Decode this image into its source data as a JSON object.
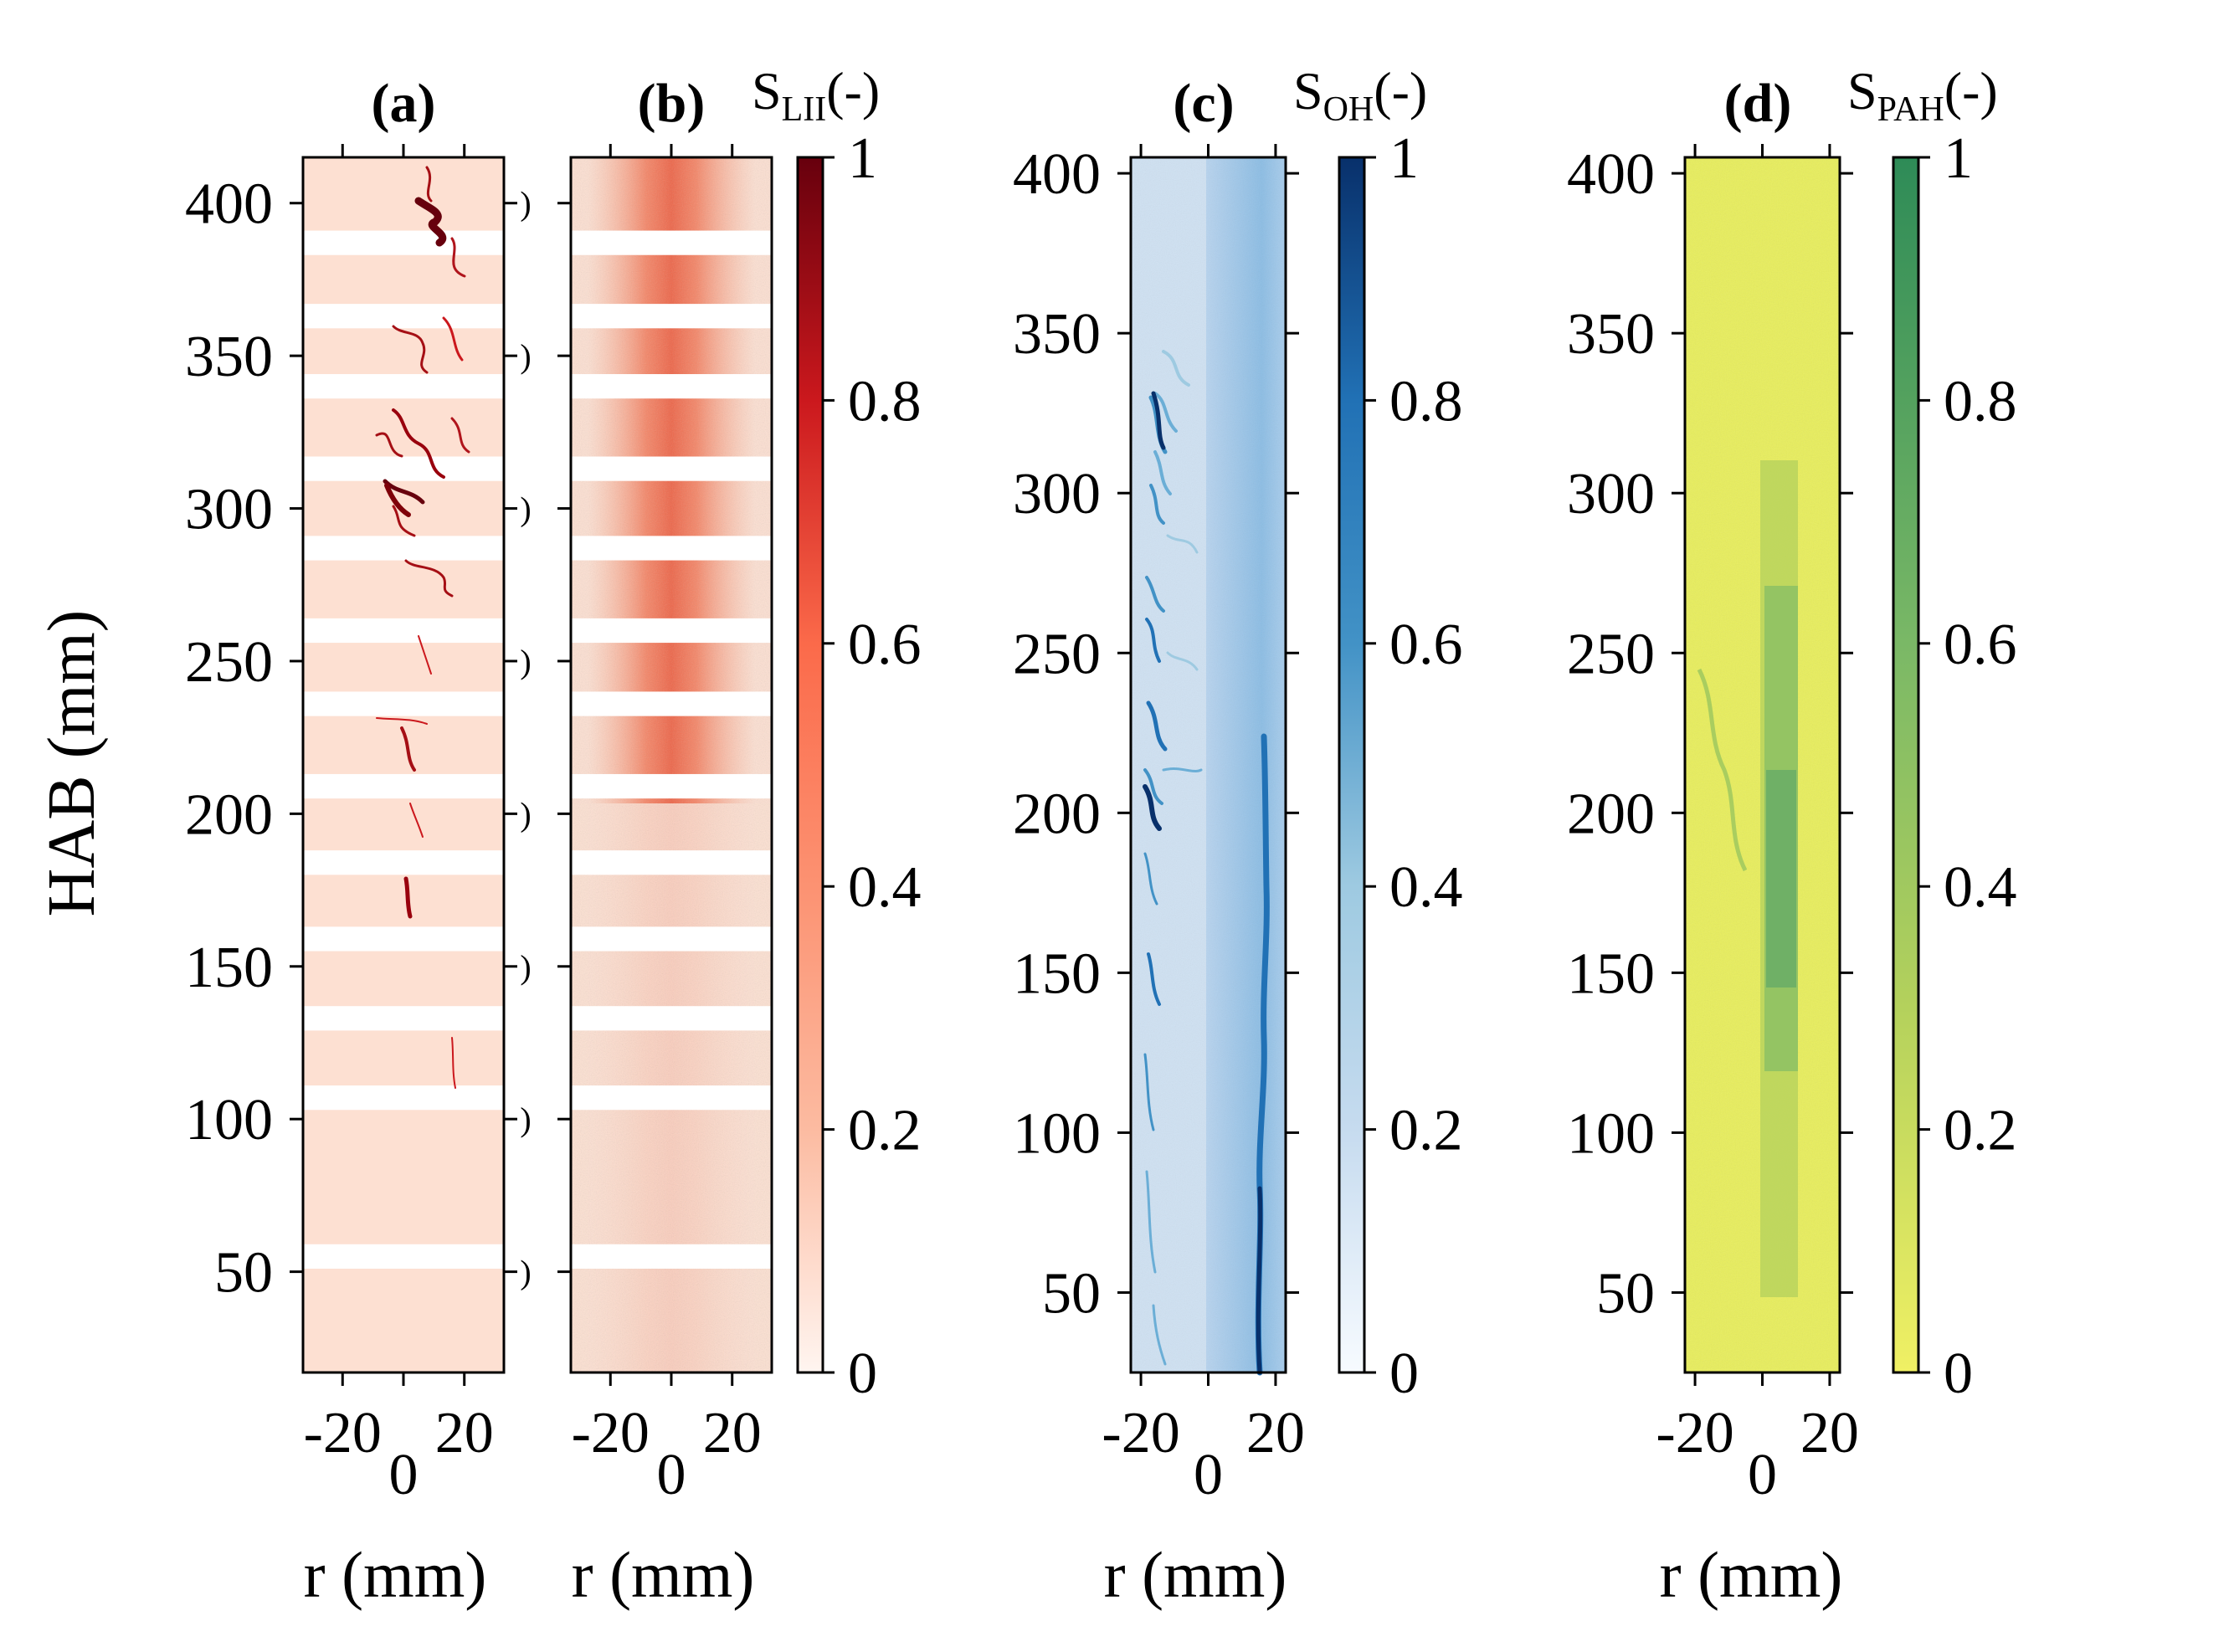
{
  "figure": {
    "ylabel": "HAB (mm)",
    "xlabel": "r (mm)"
  },
  "chart_data": [
    {
      "id": "a",
      "type": "heatmap",
      "title": "(a)",
      "xlabel": "r (mm)",
      "ylabel": "HAB (mm)",
      "xlim": [
        -33,
        33
      ],
      "ylim": [
        17,
        415
      ],
      "xticks": [
        -20,
        0,
        20
      ],
      "yticks": [
        50,
        100,
        150,
        200,
        250,
        300,
        350,
        400
      ],
      "quantity": "S_LII",
      "colormap": "Reds",
      "colorbar_range": [
        0,
        1
      ],
      "gap_bands_hab": [
        [
          51,
          59
        ],
        [
          103,
          111
        ],
        [
          129,
          137
        ],
        [
          155,
          163
        ],
        [
          180,
          188
        ],
        [
          205,
          213
        ],
        [
          232,
          240
        ],
        [
          256,
          264
        ],
        [
          283,
          291
        ],
        [
          309,
          317
        ],
        [
          336,
          344
        ],
        [
          359,
          367
        ],
        [
          383,
          391
        ]
      ]
    },
    {
      "id": "b",
      "type": "heatmap",
      "title": "(b)",
      "xlabel": "r (mm)",
      "xlim": [
        -33,
        33
      ],
      "ylim": [
        17,
        415
      ],
      "xticks": [
        -20,
        0,
        20
      ],
      "quantity": "S_LII",
      "colormap": "Reds",
      "colorbar_label": "S",
      "colorbar_label_sub": "LII",
      "colorbar_label_suffix": "(-)",
      "colorbar_range": [
        0,
        1
      ],
      "colorbar_ticks": [
        "0",
        "0.2",
        "0.4",
        "0.6",
        "0.8",
        "1"
      ],
      "gap_bands_hab": [
        [
          51,
          59
        ],
        [
          103,
          111
        ],
        [
          129,
          137
        ],
        [
          155,
          163
        ],
        [
          180,
          188
        ],
        [
          205,
          213
        ],
        [
          232,
          240
        ],
        [
          256,
          264
        ],
        [
          283,
          291
        ],
        [
          309,
          317
        ],
        [
          336,
          344
        ],
        [
          359,
          367
        ],
        [
          383,
          391
        ]
      ]
    },
    {
      "id": "c",
      "type": "heatmap",
      "title": "(c)",
      "xlabel": "r (mm)",
      "xlim": [
        -23,
        23
      ],
      "ylim": [
        25,
        405
      ],
      "xticks": [
        -20,
        0,
        20
      ],
      "yticks": [
        50,
        100,
        150,
        200,
        250,
        300,
        350,
        400
      ],
      "quantity": "S_OH",
      "colormap": "Blues",
      "colorbar_label": "S",
      "colorbar_label_sub": "OH",
      "colorbar_label_suffix": "(-)",
      "colorbar_range": [
        0,
        1
      ],
      "colorbar_ticks": [
        "0",
        "0.2",
        "0.4",
        "0.6",
        "0.8",
        "1"
      ]
    },
    {
      "id": "d",
      "type": "heatmap",
      "title": "(d)",
      "xlabel": "r (mm)",
      "xlim": [
        -23,
        23
      ],
      "ylim": [
        25,
        405
      ],
      "xticks": [
        -20,
        0,
        20
      ],
      "yticks": [
        50,
        100,
        150,
        200,
        250,
        300,
        350,
        400
      ],
      "quantity": "S_PAH",
      "colormap": "summer_r",
      "colorbar_label": "S",
      "colorbar_label_sub": "PAH",
      "colorbar_label_suffix": "(-)",
      "colorbar_range": [
        0,
        1
      ],
      "colorbar_ticks": [
        "0",
        "0.2",
        "0.4",
        "0.6",
        "0.8",
        "1"
      ]
    }
  ]
}
